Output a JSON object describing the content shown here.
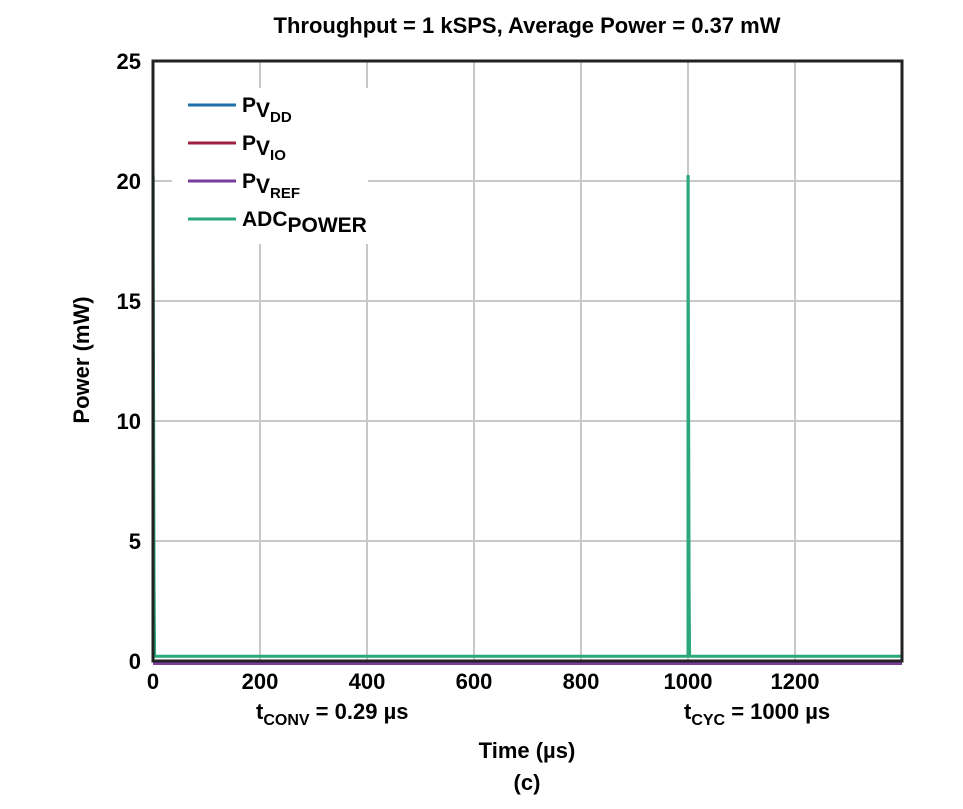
{
  "chart_data": {
    "type": "line",
    "title": "Throughput = 1 kSPS, Average Power = 0.37 mW",
    "xlabel": "Time (µs)",
    "ylabel": "Power (mW)",
    "caption": "(c)",
    "xlim": [
      0,
      1400
    ],
    "ylim": [
      0,
      25
    ],
    "x_ticks": [
      0,
      200,
      400,
      600,
      800,
      1000,
      1200
    ],
    "y_ticks": [
      0,
      5,
      10,
      15,
      20,
      25
    ],
    "grid": true,
    "legend_position": "top-left",
    "series": [
      {
        "name": "PVDD",
        "label_main": "P",
        "label_v": "V",
        "label_sub": "DD",
        "color": "#1f6fa8",
        "x": [
          0,
          1400
        ],
        "y": [
          -0.1,
          -0.1
        ]
      },
      {
        "name": "PVIO",
        "label_main": "P",
        "label_v": "V",
        "label_sub": "IO",
        "color": "#9e1f3f",
        "x": [
          0,
          1400
        ],
        "y": [
          -0.1,
          -0.1
        ]
      },
      {
        "name": "PVREF",
        "label_main": "P",
        "label_v": "V",
        "label_sub": "REF",
        "color": "#7a3e9d",
        "x": [
          0,
          1400
        ],
        "y": [
          -0.1,
          -0.1
        ]
      },
      {
        "name": "ADCPOWER",
        "label_main": "ADC",
        "label_v": "",
        "label_sub": "POWER",
        "color": "#2aa87a",
        "x": [
          0,
          0.29,
          0.29,
          2,
          3,
          1000,
          1000,
          1000.29,
          1000.29,
          1002,
          1003,
          1400
        ],
        "y": [
          20.2,
          20.2,
          17,
          3,
          0.2,
          0.2,
          20.2,
          20.2,
          17,
          3,
          0.2,
          0.2
        ]
      }
    ],
    "annotations": [
      {
        "main": "t",
        "sub": "CONV",
        "rest": " = 0.29 µs",
        "x": 200
      },
      {
        "main": "t",
        "sub": "CYC",
        "rest": " = 1000 µs",
        "x": 1000
      }
    ]
  }
}
